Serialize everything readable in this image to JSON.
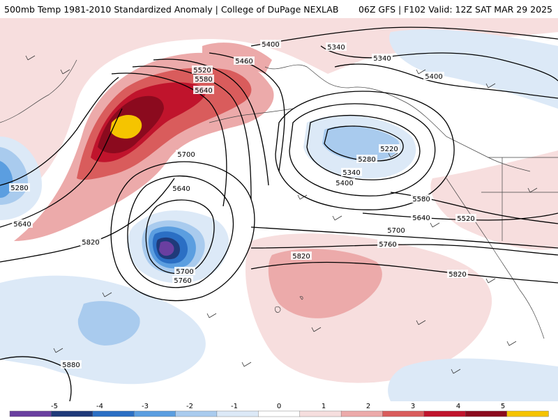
{
  "header": {
    "title": "500mb Temp 1981-2010 Standardized Anomaly | College of DuPage NEXLAB",
    "run": "06Z GFS | F102 Valid: 12Z SAT MAR 29 2025"
  },
  "contour_labels": [
    {
      "id": "c5400a",
      "text": "5400"
    },
    {
      "id": "c5340a",
      "text": "5340"
    },
    {
      "id": "c5340b",
      "text": "5340"
    },
    {
      "id": "c5460a",
      "text": "5460"
    },
    {
      "id": "c5520a",
      "text": "5520"
    },
    {
      "id": "c5580a",
      "text": "5580"
    },
    {
      "id": "c5640a",
      "text": "5640"
    },
    {
      "id": "c5400b",
      "text": "5400"
    },
    {
      "id": "c5220a",
      "text": "5220"
    },
    {
      "id": "c5280a",
      "text": "5280"
    },
    {
      "id": "c5340c",
      "text": "5340"
    },
    {
      "id": "c5400c",
      "text": "5400"
    },
    {
      "id": "c5700a",
      "text": "5700"
    },
    {
      "id": "c5640b",
      "text": "5640"
    },
    {
      "id": "c5280b",
      "text": "5280"
    },
    {
      "id": "c5640c",
      "text": "5640"
    },
    {
      "id": "c5820a",
      "text": "5820"
    },
    {
      "id": "c5700b",
      "text": "5700"
    },
    {
      "id": "c5760a",
      "text": "5760"
    },
    {
      "id": "c5580b",
      "text": "5580"
    },
    {
      "id": "c5640d",
      "text": "5640"
    },
    {
      "id": "c5520b",
      "text": "5520"
    },
    {
      "id": "c5700c",
      "text": "5700"
    },
    {
      "id": "c5760b",
      "text": "5760"
    },
    {
      "id": "c5820b",
      "text": "5820"
    },
    {
      "id": "c5820c",
      "text": "5820"
    },
    {
      "id": "c5880a",
      "text": "5880"
    }
  ],
  "colorbar": {
    "ticks": [
      "-5",
      "-4",
      "-3",
      "-2",
      "-1",
      "0",
      "1",
      "2",
      "3",
      "4",
      "5"
    ],
    "colors": [
      "#6a3fa0",
      "#1f3a7a",
      "#2b6fc4",
      "#5b9ee0",
      "#a9cbee",
      "#dce9f7",
      "#ffffff",
      "#f6dede",
      "#ecaaaa",
      "#d95c5c",
      "#c0142c",
      "#8b0a1e",
      "#f5c400"
    ]
  }
}
